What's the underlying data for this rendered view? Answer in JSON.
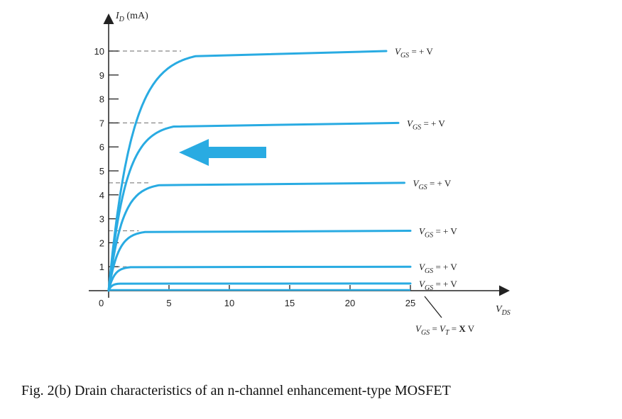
{
  "caption": "Fig. 2(b) Drain characteristics of an n-channel enhancement-type MOSFET",
  "chart_data": {
    "type": "line",
    "xlabel": "V_DS",
    "ylabel": "I_D (mA)",
    "xlim": [
      0,
      27
    ],
    "ylim": [
      0,
      11
    ],
    "x_ticks": [
      0,
      5,
      10,
      15,
      20,
      25
    ],
    "y_ticks": [
      1,
      2,
      3,
      4,
      5,
      6,
      7,
      8,
      9,
      10
    ],
    "origin_label": "0",
    "line_color": "#29abe2",
    "arrow_color": "#29abe2",
    "threshold_label": "V_GS = V_T = X V",
    "series": [
      {
        "name": "V_GS = + V",
        "saturation": 10.0,
        "knee": 6.0,
        "end_x": 23.0
      },
      {
        "name": "V_GS = + V",
        "saturation": 7.0,
        "knee": 4.5,
        "end_x": 24.0
      },
      {
        "name": "V_GS = + V",
        "saturation": 4.5,
        "knee": 3.5,
        "end_x": 24.5
      },
      {
        "name": "V_GS = + V",
        "saturation": 2.5,
        "knee": 2.5,
        "end_x": 25.0
      },
      {
        "name": "V_GS = + V",
        "saturation": 1.0,
        "knee": 1.5,
        "end_x": 25.0
      },
      {
        "name": "V_GS = + V",
        "saturation": 0.3,
        "knee": 0.8,
        "end_x": 25.0
      }
    ]
  }
}
